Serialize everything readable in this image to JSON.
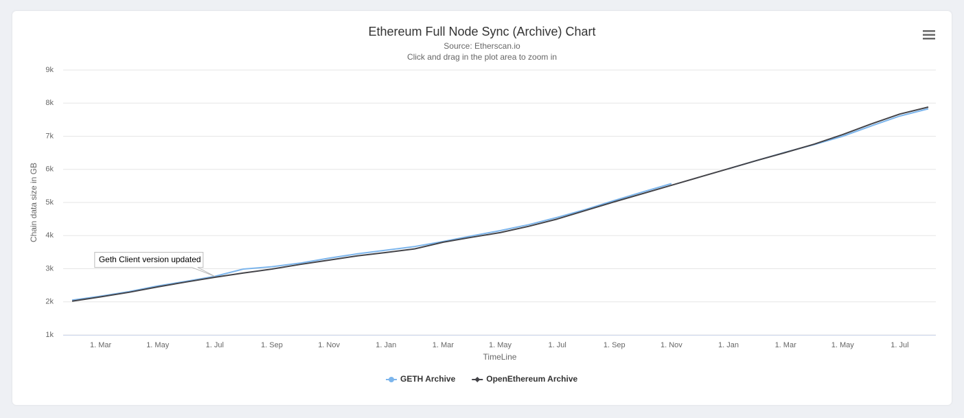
{
  "chart_data": {
    "type": "line",
    "title": "Ethereum Full Node Sync (Archive) Chart",
    "subtitle": [
      "Source: Etherscan.io",
      "Click and drag in the plot area to zoom in"
    ],
    "x_label": "TimeLine",
    "y_label": "Chain data size in GB",
    "categories": [
      null,
      "1. Mar",
      null,
      "1. May",
      null,
      "1. Jul",
      null,
      "1. Sep",
      null,
      "1. Nov",
      null,
      "1. Jan",
      null,
      "1. Mar",
      null,
      "1. May",
      null,
      "1. Jul",
      null,
      "1. Sep",
      null,
      "1. Nov",
      null,
      "1. Jan",
      null,
      "1. Mar",
      null,
      "1. May",
      null,
      "1. Jul",
      null
    ],
    "series": [
      {
        "name": "GETH Archive",
        "color": "#7cb5ec",
        "values": [
          2050,
          2170,
          2310,
          2480,
          2620,
          2770,
          2990,
          3060,
          3170,
          3320,
          3450,
          3560,
          3670,
          3820,
          3990,
          4150,
          4330,
          4550,
          4790,
          5060,
          5320,
          5570,
          null,
          6020,
          6270,
          6520,
          6750,
          7000,
          7310,
          7610,
          7830
        ]
      },
      {
        "name": "OpenEthereum Archive",
        "color": "#434348",
        "values": [
          2020,
          2150,
          2290,
          2450,
          2600,
          2740,
          2870,
          2990,
          3130,
          3260,
          3390,
          3490,
          3600,
          3800,
          3950,
          4090,
          4280,
          4500,
          4760,
          5020,
          5270,
          5520,
          5770,
          6020,
          6270,
          6510,
          6760,
          7050,
          7370,
          7670,
          7880
        ]
      }
    ],
    "ylim": [
      1000,
      9000
    ],
    "yticks": [
      {
        "value": 1000,
        "label": "1k"
      },
      {
        "value": 2000,
        "label": "2k"
      },
      {
        "value": 3000,
        "label": "3k"
      },
      {
        "value": 4000,
        "label": "4k"
      },
      {
        "value": 5000,
        "label": "5k"
      },
      {
        "value": 6000,
        "label": "6k"
      },
      {
        "value": 7000,
        "label": "7k"
      },
      {
        "value": 8000,
        "label": "8k"
      },
      {
        "value": 9000,
        "label": "9k"
      }
    ],
    "grid": true,
    "legend": "bottom",
    "annotations": [
      {
        "text": "Geth Client version updated",
        "series": 0,
        "index": 5
      }
    ]
  }
}
